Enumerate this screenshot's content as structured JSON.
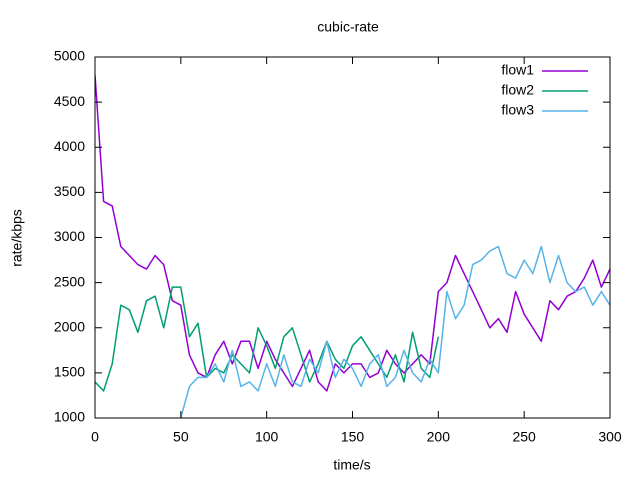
{
  "chart_data": {
    "type": "line",
    "title": "cubic-rate",
    "x_label": "time/s",
    "y_label": "rate/kbps",
    "x": [
      0,
      5,
      10,
      15,
      20,
      25,
      30,
      35,
      40,
      45,
      50,
      55,
      60,
      65,
      70,
      75,
      80,
      85,
      90,
      95,
      100,
      105,
      110,
      115,
      120,
      125,
      130,
      135,
      140,
      145,
      150,
      155,
      160,
      165,
      170,
      175,
      180,
      185,
      190,
      195,
      200,
      205,
      210,
      215,
      220,
      225,
      230,
      235,
      240,
      245,
      250,
      255,
      260,
      265,
      270,
      275,
      280,
      285,
      290,
      295,
      300
    ],
    "series": [
      {
        "name": "flow1",
        "color": "#9400d3",
        "values": [
          4800,
          3400,
          3350,
          2900,
          2800,
          2700,
          2650,
          2800,
          2700,
          2300,
          2250,
          1700,
          1500,
          1450,
          1700,
          1850,
          1600,
          1850,
          1850,
          1550,
          1850,
          1650,
          1500,
          1350,
          1550,
          1750,
          1400,
          1300,
          1600,
          1500,
          1600,
          1600,
          1450,
          1500,
          1750,
          1600,
          1500,
          1600,
          1700,
          1600,
          2400,
          2500,
          2800,
          2600,
          2400,
          2200,
          2000,
          2100,
          1950,
          2400,
          2150,
          2000,
          1850,
          2300,
          2200,
          2350,
          2400,
          2550,
          2750,
          2450,
          2650
        ]
      },
      {
        "name": "flow2",
        "color": "#009e73",
        "values": [
          1400,
          1300,
          1600,
          2250,
          2200,
          1950,
          2300,
          2350,
          2000,
          2450,
          2450,
          1900,
          2050,
          1450,
          1550,
          1500,
          1700,
          1600,
          1500,
          2000,
          1800,
          1550,
          1900,
          2000,
          1700,
          1400,
          1600,
          1850,
          1650,
          1550,
          1800,
          1900,
          1750,
          1600,
          1450,
          1700,
          1400,
          1950,
          1550,
          1450,
          1900,
          null,
          null,
          null,
          null,
          null,
          null,
          null,
          null,
          null,
          null,
          null,
          null,
          null,
          null,
          null,
          null,
          null,
          null,
          null,
          null
        ]
      },
      {
        "name": "flow3",
        "color": "#56b4e9",
        "values": [
          null,
          null,
          null,
          null,
          null,
          null,
          null,
          null,
          null,
          null,
          1000,
          1350,
          1450,
          1450,
          1600,
          1400,
          1750,
          1350,
          1400,
          1300,
          1600,
          1350,
          1700,
          1400,
          1350,
          1650,
          1500,
          1850,
          1450,
          1650,
          1550,
          1350,
          1600,
          1700,
          1350,
          1450,
          1750,
          1500,
          1400,
          1650,
          1500,
          2400,
          2100,
          2250,
          2700,
          2750,
          2850,
          2900,
          2600,
          2550,
          2750,
          2600,
          2900,
          2500,
          2800,
          2500,
          2400,
          2450,
          2250,
          2400,
          2250
        ]
      }
    ],
    "xlim": [
      0,
      300
    ],
    "xticks": [
      0,
      50,
      100,
      150,
      200,
      250,
      300
    ],
    "ylim": [
      1000,
      5000
    ],
    "yticks": [
      1000,
      1500,
      2000,
      2500,
      3000,
      3500,
      4000,
      4500,
      5000
    ],
    "legend": "top-right"
  }
}
